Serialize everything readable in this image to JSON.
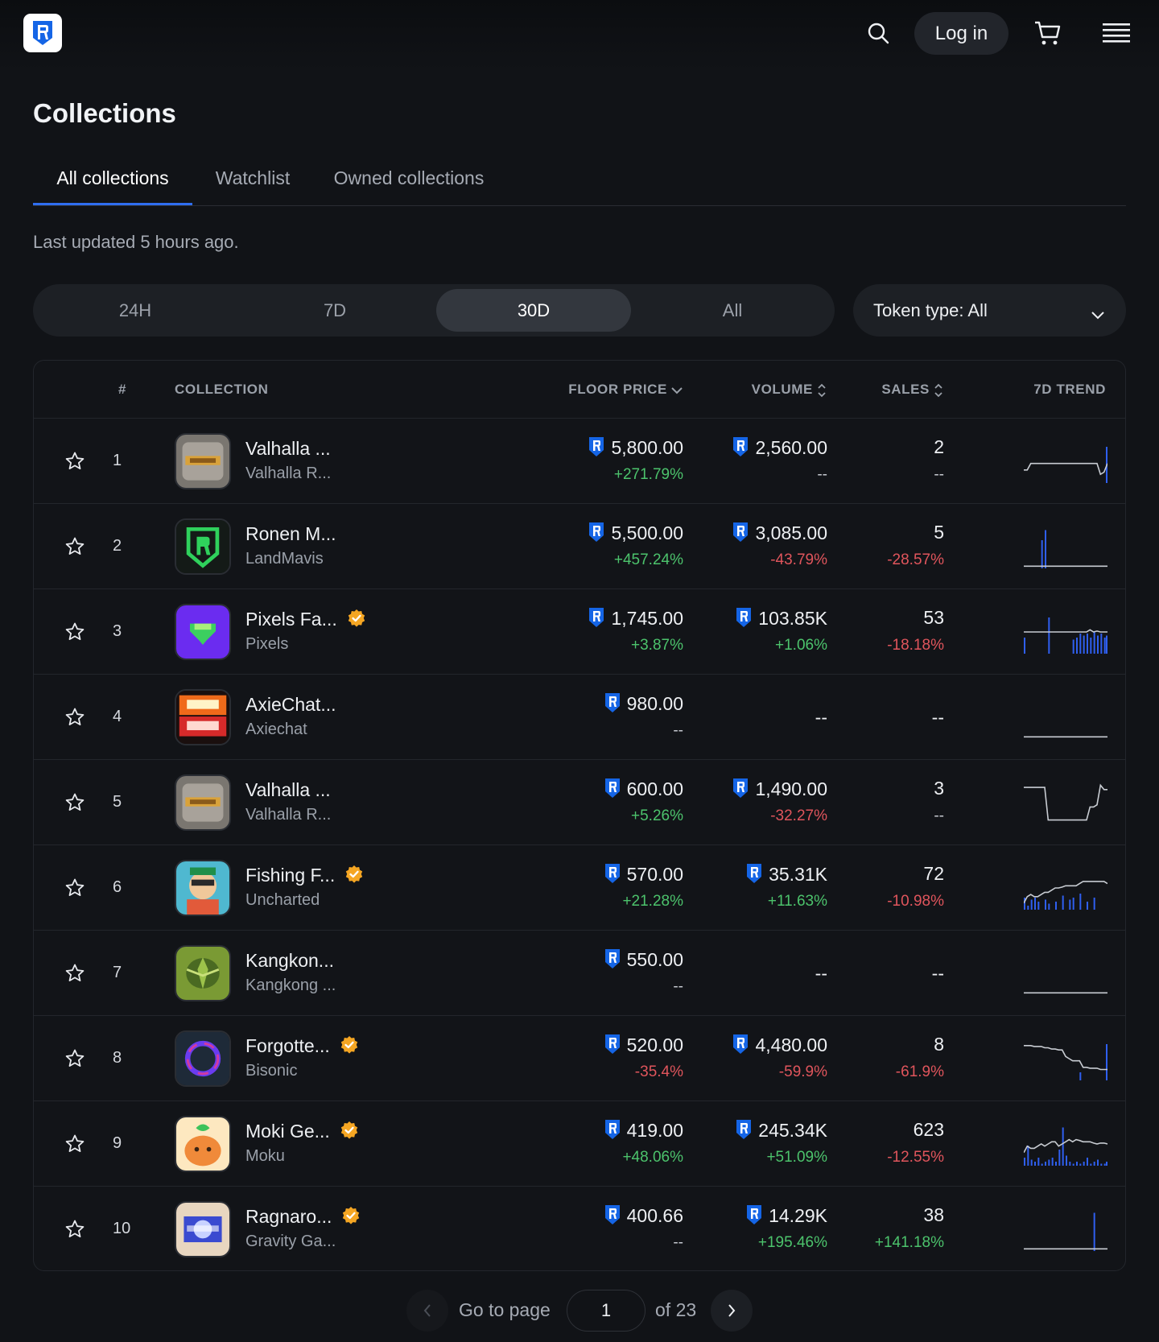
{
  "header": {
    "login_label": "Log in",
    "icons": [
      "ronin-logo-icon",
      "search-icon",
      "cart-icon",
      "menu-icon"
    ]
  },
  "page": {
    "title": "Collections",
    "tabs": [
      {
        "label": "All collections",
        "active": true
      },
      {
        "label": "Watchlist",
        "active": false
      },
      {
        "label": "Owned collections",
        "active": false
      }
    ],
    "last_updated": "Last updated 5 hours ago."
  },
  "filters": {
    "ranges": [
      {
        "label": "24H",
        "active": false
      },
      {
        "label": "7D",
        "active": false
      },
      {
        "label": "30D",
        "active": true
      },
      {
        "label": "All",
        "active": false
      }
    ],
    "token_type": "Token type: All"
  },
  "table": {
    "headers": {
      "rank": "#",
      "collection": "COLLECTION",
      "floor": "FLOOR PRICE",
      "volume": "VOLUME",
      "sales": "SALES",
      "trend": "7D TREND"
    },
    "rows": [
      {
        "rank": "1",
        "name": "Valhalla ...",
        "creator": "Valhalla R...",
        "verified": false,
        "floor": "5,800.00",
        "floor_change": "+271.79%",
        "floor_dir": "pos",
        "volume": "2,560.00",
        "volume_change": "--",
        "volume_dir": "neu",
        "volume_has_icon": true,
        "sales": "2",
        "sales_change": "--",
        "sales_dir": "neu",
        "trend": {
          "line": [
            70,
            70,
            55,
            55,
            55,
            55,
            55,
            55,
            55,
            55,
            55,
            55,
            55,
            55,
            55,
            55,
            55,
            55,
            55,
            55,
            55,
            55,
            80,
            75,
            55
          ],
          "bars": [
            0,
            0,
            0,
            0,
            0,
            0,
            0,
            0,
            0,
            0,
            0,
            0,
            0,
            0,
            0,
            0,
            0,
            0,
            0,
            0,
            0,
            0,
            0,
            0,
            90
          ]
        }
      },
      {
        "rank": "2",
        "name": "Ronen M...",
        "creator": "LandMavis",
        "verified": false,
        "floor": "5,500.00",
        "floor_change": "+457.24%",
        "floor_dir": "pos",
        "volume": "3,085.00",
        "volume_change": "-43.79%",
        "volume_dir": "neg",
        "volume_has_icon": true,
        "sales": "5",
        "sales_change": "-28.57%",
        "sales_dir": "neg",
        "trend": {
          "line": [
            95,
            95,
            95,
            95,
            95,
            95,
            95,
            95,
            95,
            95,
            95,
            95,
            95,
            95,
            95,
            95,
            95,
            95,
            95,
            95,
            95,
            95,
            95,
            95,
            95
          ],
          "bars": [
            0,
            0,
            0,
            0,
            0,
            70,
            95,
            0,
            0,
            0,
            0,
            0,
            0,
            0,
            0,
            0,
            0,
            0,
            0,
            0,
            0,
            0,
            0,
            0,
            0
          ]
        }
      },
      {
        "rank": "3",
        "name": "Pixels Fa...",
        "creator": "Pixels",
        "verified": true,
        "floor": "1,745.00",
        "floor_change": "+3.87%",
        "floor_dir": "pos",
        "volume": "103.85K",
        "volume_change": "+1.06%",
        "volume_dir": "pos",
        "volume_has_icon": true,
        "sales": "53",
        "sales_change": "-18.18%",
        "sales_dir": "neg",
        "trend": {
          "line": [
            50,
            50,
            50,
            50,
            50,
            50,
            50,
            50,
            50,
            50,
            50,
            50,
            50,
            50,
            50,
            50,
            50,
            50,
            50,
            45,
            50,
            48,
            50,
            50,
            50
          ],
          "bars": [
            40,
            0,
            0,
            0,
            0,
            0,
            0,
            90,
            0,
            0,
            0,
            0,
            0,
            0,
            35,
            40,
            50,
            45,
            50,
            40,
            55,
            45,
            50,
            40,
            45
          ]
        }
      },
      {
        "rank": "4",
        "name": "AxieChat...",
        "creator": "Axiechat",
        "verified": false,
        "floor": "980.00",
        "floor_change": "--",
        "floor_dir": "neu",
        "volume": "--",
        "volume_change": "",
        "volume_dir": "neu",
        "volume_has_icon": false,
        "sales": "--",
        "sales_change": "",
        "sales_dir": "neu",
        "trend": {
          "line": [
            95,
            95,
            95,
            95,
            95,
            95,
            95,
            95,
            95,
            95,
            95,
            95,
            95,
            95,
            95,
            95,
            95,
            95,
            95,
            95,
            95,
            95,
            95,
            95,
            95
          ],
          "bars": []
        }
      },
      {
        "rank": "5",
        "name": "Valhalla ...",
        "creator": "Valhalla R...",
        "verified": false,
        "floor": "600.00",
        "floor_change": "+5.26%",
        "floor_dir": "pos",
        "volume": "1,490.00",
        "volume_change": "-32.27%",
        "volume_dir": "neg",
        "volume_has_icon": true,
        "sales": "3",
        "sales_change": "--",
        "sales_dir": "neu",
        "trend": {
          "line": [
            15,
            15,
            15,
            15,
            15,
            15,
            15,
            90,
            90,
            90,
            90,
            90,
            90,
            90,
            90,
            90,
            90,
            90,
            90,
            60,
            60,
            55,
            10,
            20,
            20
          ],
          "bars": []
        }
      },
      {
        "rank": "6",
        "name": "Fishing F...",
        "creator": "Uncharted",
        "verified": true,
        "floor": "570.00",
        "floor_change": "+21.28%",
        "floor_dir": "pos",
        "volume": "35.31K",
        "volume_change": "+11.63%",
        "volume_dir": "pos",
        "volume_has_icon": true,
        "sales": "72",
        "sales_change": "-10.98%",
        "sales_dir": "neg",
        "trend": {
          "line": [
            85,
            70,
            65,
            70,
            70,
            65,
            60,
            60,
            55,
            50,
            50,
            48,
            45,
            45,
            45,
            45,
            40,
            35,
            35,
            35,
            35,
            35,
            35,
            35,
            40
          ],
          "bars": [
            30,
            10,
            25,
            30,
            20,
            0,
            25,
            15,
            0,
            20,
            0,
            35,
            0,
            25,
            30,
            0,
            40,
            0,
            20,
            0,
            30,
            0,
            0,
            0,
            0
          ]
        }
      },
      {
        "rank": "7",
        "name": "Kangkon...",
        "creator": "Kangkong ...",
        "verified": false,
        "floor": "550.00",
        "floor_change": "--",
        "floor_dir": "neu",
        "volume": "--",
        "volume_change": "",
        "volume_dir": "neu",
        "volume_has_icon": false,
        "sales": "--",
        "sales_change": "",
        "sales_dir": "neu",
        "trend": {
          "line": [
            95,
            95,
            95,
            95,
            95,
            95,
            95,
            95,
            95,
            95,
            95,
            95,
            95,
            95,
            95,
            95,
            95,
            95,
            95,
            95,
            95,
            95,
            95,
            95,
            95
          ],
          "bars": []
        }
      },
      {
        "rank": "8",
        "name": "Forgotte...",
        "creator": "Bisonic",
        "verified": true,
        "floor": "520.00",
        "floor_change": "-35.4%",
        "floor_dir": "neg",
        "volume": "4,480.00",
        "volume_change": "-59.9%",
        "volume_dir": "neg",
        "volume_has_icon": true,
        "sales": "8",
        "sales_change": "-61.9%",
        "sales_dir": "neg",
        "trend": {
          "line": [
            20,
            20,
            20,
            22,
            22,
            22,
            25,
            25,
            28,
            28,
            30,
            30,
            45,
            50,
            55,
            55,
            55,
            70,
            70,
            72,
            72,
            72,
            75,
            75,
            75
          ],
          "bars": [
            0,
            0,
            0,
            0,
            0,
            0,
            0,
            0,
            0,
            0,
            0,
            0,
            0,
            0,
            0,
            0,
            20,
            0,
            0,
            0,
            0,
            0,
            0,
            0,
            90
          ]
        }
      },
      {
        "rank": "9",
        "name": "Moki Ge...",
        "creator": "Moku",
        "verified": true,
        "floor": "419.00",
        "floor_change": "+48.06%",
        "floor_dir": "pos",
        "volume": "245.34K",
        "volume_change": "+51.09%",
        "volume_dir": "pos",
        "volume_has_icon": true,
        "sales": "623",
        "sales_change": "-12.55%",
        "sales_dir": "neg",
        "trend": {
          "line": [
            70,
            55,
            60,
            60,
            55,
            50,
            55,
            50,
            45,
            45,
            55,
            50,
            45,
            40,
            45,
            40,
            42,
            45,
            45,
            45,
            48,
            50,
            48,
            48,
            50
          ],
          "bars": [
            20,
            50,
            15,
            10,
            20,
            5,
            10,
            15,
            20,
            10,
            40,
            95,
            25,
            10,
            5,
            10,
            5,
            10,
            20,
            5,
            10,
            15,
            5,
            5,
            10
          ]
        }
      },
      {
        "rank": "10",
        "name": "Ragnaro...",
        "creator": "Gravity Ga...",
        "verified": true,
        "floor": "400.66",
        "floor_change": "--",
        "floor_dir": "neu",
        "volume": "14.29K",
        "volume_change": "+195.46%",
        "volume_dir": "pos",
        "volume_has_icon": true,
        "sales": "38",
        "sales_change": "+141.18%",
        "sales_dir": "pos",
        "trend": {
          "line": [
            95,
            95,
            95,
            95,
            95,
            95,
            95,
            95,
            95,
            95,
            95,
            95,
            95,
            95,
            95,
            95,
            95,
            95,
            95,
            95,
            95,
            95,
            95,
            95,
            95
          ],
          "bars": [
            0,
            0,
            0,
            0,
            0,
            0,
            0,
            0,
            0,
            0,
            0,
            0,
            0,
            0,
            0,
            0,
            0,
            0,
            0,
            0,
            95,
            0,
            0,
            0,
            0
          ]
        }
      }
    ]
  },
  "pagination": {
    "go_to_label": "Go to page",
    "current_page": "1",
    "of_label": "of 23"
  },
  "colors": {
    "accent": "#2f6ef0",
    "positive": "#4cc36c",
    "negative": "#e0555c",
    "verified": "#f5a623",
    "trend_bar": "#2f5ff0",
    "trend_line": "#c8ccd2"
  }
}
